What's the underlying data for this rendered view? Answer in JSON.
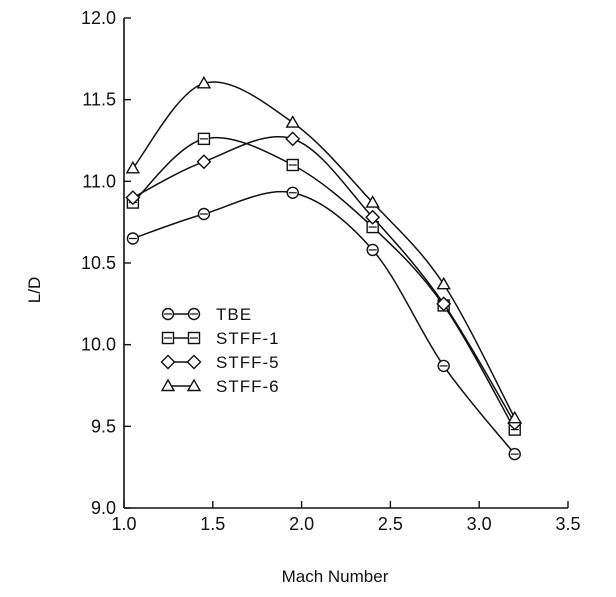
{
  "chart_data": {
    "type": "line",
    "title": "",
    "xlabel": "Mach Number",
    "ylabel": "L/D",
    "xlim": [
      1.0,
      3.5
    ],
    "ylim": [
      9.0,
      12.0
    ],
    "x_ticks": [
      1.0,
      1.5,
      2.0,
      2.5,
      3.0,
      3.5
    ],
    "x_tick_labels": [
      "1.0",
      "1.5",
      "2.0",
      "2.5",
      "3.0",
      "3.5"
    ],
    "y_ticks": [
      9.0,
      9.5,
      10.0,
      10.5,
      11.0,
      11.5,
      12.0
    ],
    "y_tick_labels": [
      "9.0",
      "9.5",
      "10.0",
      "10.5",
      "11.0",
      "11.5",
      "12.0"
    ],
    "grid": false,
    "legend_position": "center-left",
    "series": [
      {
        "name": "TBE",
        "marker": "circle",
        "x": [
          1.05,
          1.45,
          1.95,
          2.4,
          2.8,
          3.2
        ],
        "y": [
          10.65,
          10.8,
          10.93,
          10.58,
          9.87,
          9.33
        ]
      },
      {
        "name": "STFF-1",
        "marker": "square",
        "x": [
          1.05,
          1.45,
          1.95,
          2.4,
          2.8,
          3.2
        ],
        "y": [
          10.87,
          11.26,
          11.1,
          10.72,
          10.24,
          9.48
        ]
      },
      {
        "name": "STFF-5",
        "marker": "diamond",
        "x": [
          1.05,
          1.45,
          1.95,
          2.4,
          2.8,
          3.2
        ],
        "y": [
          10.9,
          11.12,
          11.26,
          10.78,
          10.25,
          9.52
        ]
      },
      {
        "name": "STFF-6",
        "marker": "triangle",
        "x": [
          1.05,
          1.45,
          1.95,
          2.4,
          2.8,
          3.2
        ],
        "y": [
          11.08,
          11.6,
          11.36,
          10.87,
          10.37,
          9.55
        ]
      }
    ]
  }
}
